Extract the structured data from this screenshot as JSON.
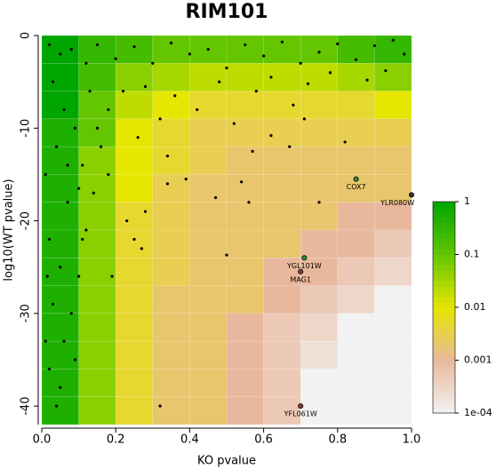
{
  "chart_data": {
    "type": "heatmap",
    "title": "RIM101",
    "xlabel": "KO pvalue",
    "ylabel": "log10(WT pvalue)",
    "xlim": [
      0,
      1
    ],
    "ylim": [
      -42,
      0
    ],
    "xticks": [
      {
        "value": 0,
        "label": "0.0"
      },
      0.2,
      0.4,
      0.6,
      0.8,
      {
        "value": 1,
        "label": "1.0"
      }
    ],
    "yticks": [
      0,
      -10,
      -20,
      -30,
      -40
    ],
    "x_bins": [
      0,
      0.1,
      0.2,
      0.3,
      0.4,
      0.5,
      0.6,
      0.7,
      0.8,
      0.9,
      1
    ],
    "y_bins": [
      0,
      -3,
      -6,
      -9,
      -12,
      -15,
      -18,
      -21,
      -24,
      -27,
      -30,
      -33,
      -36,
      -39,
      -42
    ],
    "z": [
      [
        1,
        0.3,
        0.2,
        0.1,
        0.1,
        0.1,
        0.1,
        0.1,
        0.2,
        0.3
      ],
      [
        1,
        0.2,
        0.05,
        0.03,
        0.02,
        0.02,
        0.02,
        0.02,
        0.03,
        0.05
      ],
      [
        1,
        0.1,
        0.02,
        0.01,
        0.005,
        0.005,
        0.005,
        0.005,
        0.005,
        0.01
      ],
      [
        0.5,
        0.1,
        0.01,
        0.005,
        0.003,
        0.003,
        0.003,
        0.003,
        0.003,
        0.003
      ],
      [
        0.5,
        0.05,
        0.01,
        0.005,
        0.003,
        0.002,
        0.002,
        0.002,
        0.002,
        0.002
      ],
      [
        0.5,
        0.05,
        0.01,
        0.003,
        0.002,
        0.002,
        0.002,
        0.002,
        0.002,
        0.002
      ],
      [
        0.5,
        0.05,
        0.005,
        0.003,
        0.002,
        0.002,
        0.002,
        0.002,
        0.001,
        0.001
      ],
      [
        0.5,
        0.05,
        0.005,
        0.003,
        0.002,
        0.002,
        0.002,
        0.001,
        0.001,
        0.0005
      ],
      [
        0.5,
        0.05,
        0.005,
        0.003,
        0.002,
        0.002,
        0.001,
        0.001,
        0.0005,
        0.0003
      ],
      [
        0.5,
        0.05,
        0.005,
        0.002,
        0.002,
        0.002,
        0.001,
        0.0005,
        0.0003,
        0.0001
      ],
      [
        0.5,
        0.05,
        0.005,
        0.002,
        0.002,
        0.001,
        0.0005,
        0.0003,
        0.0001,
        0.0001
      ],
      [
        0.5,
        0.05,
        0.005,
        0.002,
        0.002,
        0.001,
        0.0005,
        0.0002,
        0.0001,
        0.0001
      ],
      [
        0.5,
        0.05,
        0.005,
        0.002,
        0.002,
        0.001,
        0.0005,
        0.0001,
        0.0001,
        0.0001
      ],
      [
        0.5,
        0.05,
        0.005,
        0.002,
        0.002,
        0.001,
        0.0005,
        0.0001,
        0.0001,
        0.0001
      ]
    ],
    "colorbar": {
      "zlim": [
        0.0001,
        1
      ],
      "log": true,
      "ticks": [
        1,
        0.1,
        0.01,
        0.001,
        {
          "value": 0.0001,
          "label": "1e-04"
        }
      ],
      "colors": [
        "#f2f2f2",
        "#e9b89c",
        "#e6e600",
        "#63c600",
        "#00a600"
      ]
    },
    "points": {
      "color": "#000000",
      "x": [
        0.02,
        0.05,
        0.08,
        0.12,
        0.15,
        0.2,
        0.25,
        0.3,
        0.35,
        0.4,
        0.45,
        0.5,
        0.55,
        0.6,
        0.65,
        0.7,
        0.75,
        0.8,
        0.85,
        0.9,
        0.95,
        0.98,
        0.03,
        0.06,
        0.04,
        0.09,
        0.11,
        0.07,
        0.02,
        0.05,
        0.03,
        0.06,
        0.02,
        0.05,
        0.08,
        0.1,
        0.12,
        0.14,
        0.16,
        0.18,
        0.22,
        0.26,
        0.28,
        0.32,
        0.36,
        0.42,
        0.48,
        0.52,
        0.58,
        0.62,
        0.68,
        0.72,
        0.78,
        0.88,
        0.93,
        0.18,
        0.25,
        0.27,
        0.34,
        0.39,
        0.47,
        0.5,
        0.54,
        0.56,
        0.62,
        0.71,
        0.75,
        0.82,
        0.34,
        0.32,
        0.09,
        0.04,
        0.11,
        0.19,
        0.23,
        0.01,
        0.015,
        0.01,
        0.07,
        0.13,
        0.57,
        0.67,
        0.15,
        0.28,
        0.1
      ],
      "y": [
        -1,
        -2,
        -1.5,
        -3,
        -1,
        -2.5,
        -1.2,
        -3,
        -0.8,
        -2,
        -1.5,
        -3.5,
        -1,
        -2.2,
        -0.7,
        -3,
        -1.8,
        -0.9,
        -2.6,
        -1.1,
        -0.5,
        -2,
        -5,
        -8,
        -12,
        -10,
        -14,
        -18,
        -22,
        -25,
        -29,
        -33,
        -36,
        -38,
        -30,
        -26,
        -21,
        -17,
        -12,
        -8,
        -6,
        -11,
        -5.5,
        -9,
        -6.5,
        -8,
        -5,
        -9.5,
        -6,
        -4.5,
        -7.5,
        -5.2,
        -4,
        -4.8,
        -3.8,
        -15,
        -22,
        -23,
        -16,
        -15.5,
        -17.5,
        -23.7,
        -15.8,
        -18,
        -10.8,
        -9,
        -18,
        -11.5,
        -13,
        -40,
        -35,
        -40,
        -22,
        -26,
        -20,
        -15,
        -26,
        -33,
        -14,
        -6,
        -12.5,
        -12,
        -10,
        -19,
        -16.5
      ]
    },
    "highlights": [
      {
        "name": "COX7",
        "x": 0.85,
        "y": -15.5,
        "color": "#2d8f2d"
      },
      {
        "name": "YLR080W",
        "x": 1.0,
        "y": -17.2,
        "color": "#333333"
      },
      {
        "name": "YGL101W",
        "x": 0.71,
        "y": -24,
        "color": "#2d8f2d"
      },
      {
        "name": "MAG1",
        "x": 0.7,
        "y": -25.5,
        "color": "#8b3a3a"
      },
      {
        "name": "YFL061W",
        "x": 0.7,
        "y": -40,
        "color": "#8b3a3a"
      }
    ]
  }
}
